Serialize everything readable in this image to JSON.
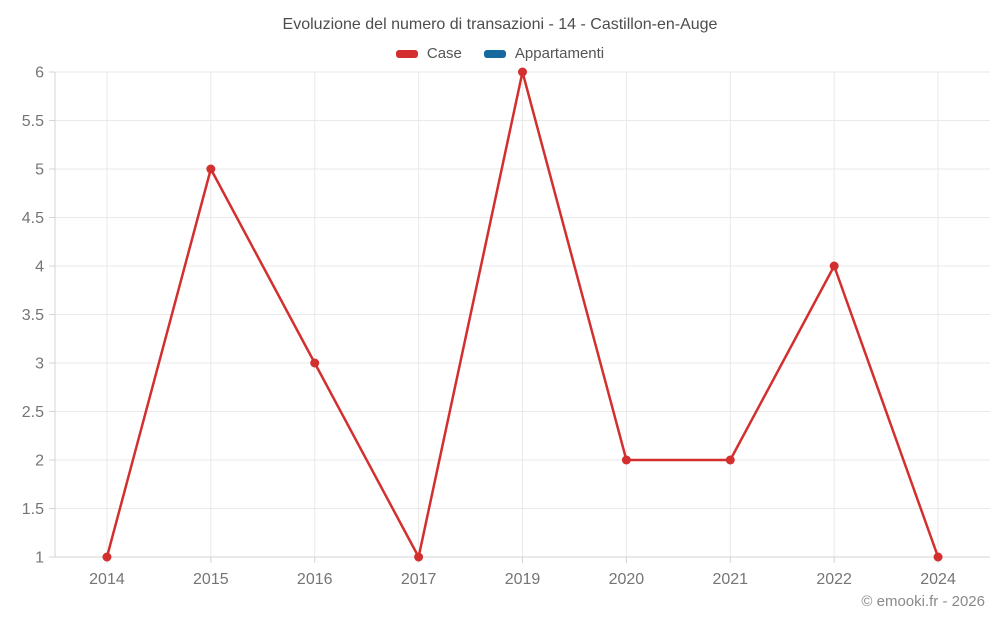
{
  "chart_data": {
    "type": "line",
    "title": "Evoluzione del numero di transazioni - 14 - Castillon-en-Auge",
    "categories": [
      "2014",
      "2015",
      "2016",
      "2017",
      "2019",
      "2020",
      "2021",
      "2022",
      "2024"
    ],
    "series": [
      {
        "name": "Case",
        "color": "#d32f2f",
        "values": [
          1,
          5,
          3,
          1,
          6,
          2,
          2,
          4,
          1
        ]
      },
      {
        "name": "Appartamenti",
        "color": "#16699f",
        "values": []
      }
    ],
    "xlabel": "",
    "ylabel": "",
    "ylim": [
      1,
      6
    ],
    "y_tick_step": 0.5,
    "grid": true,
    "legend_position": "top",
    "colors": {
      "gridline": "#e9e9e9",
      "axis_line": "#d4d4d4",
      "tick_text": "#757575",
      "title_text": "#4d4d4d"
    }
  },
  "footer": {
    "copyright": "© emooki.fr - 2026"
  }
}
